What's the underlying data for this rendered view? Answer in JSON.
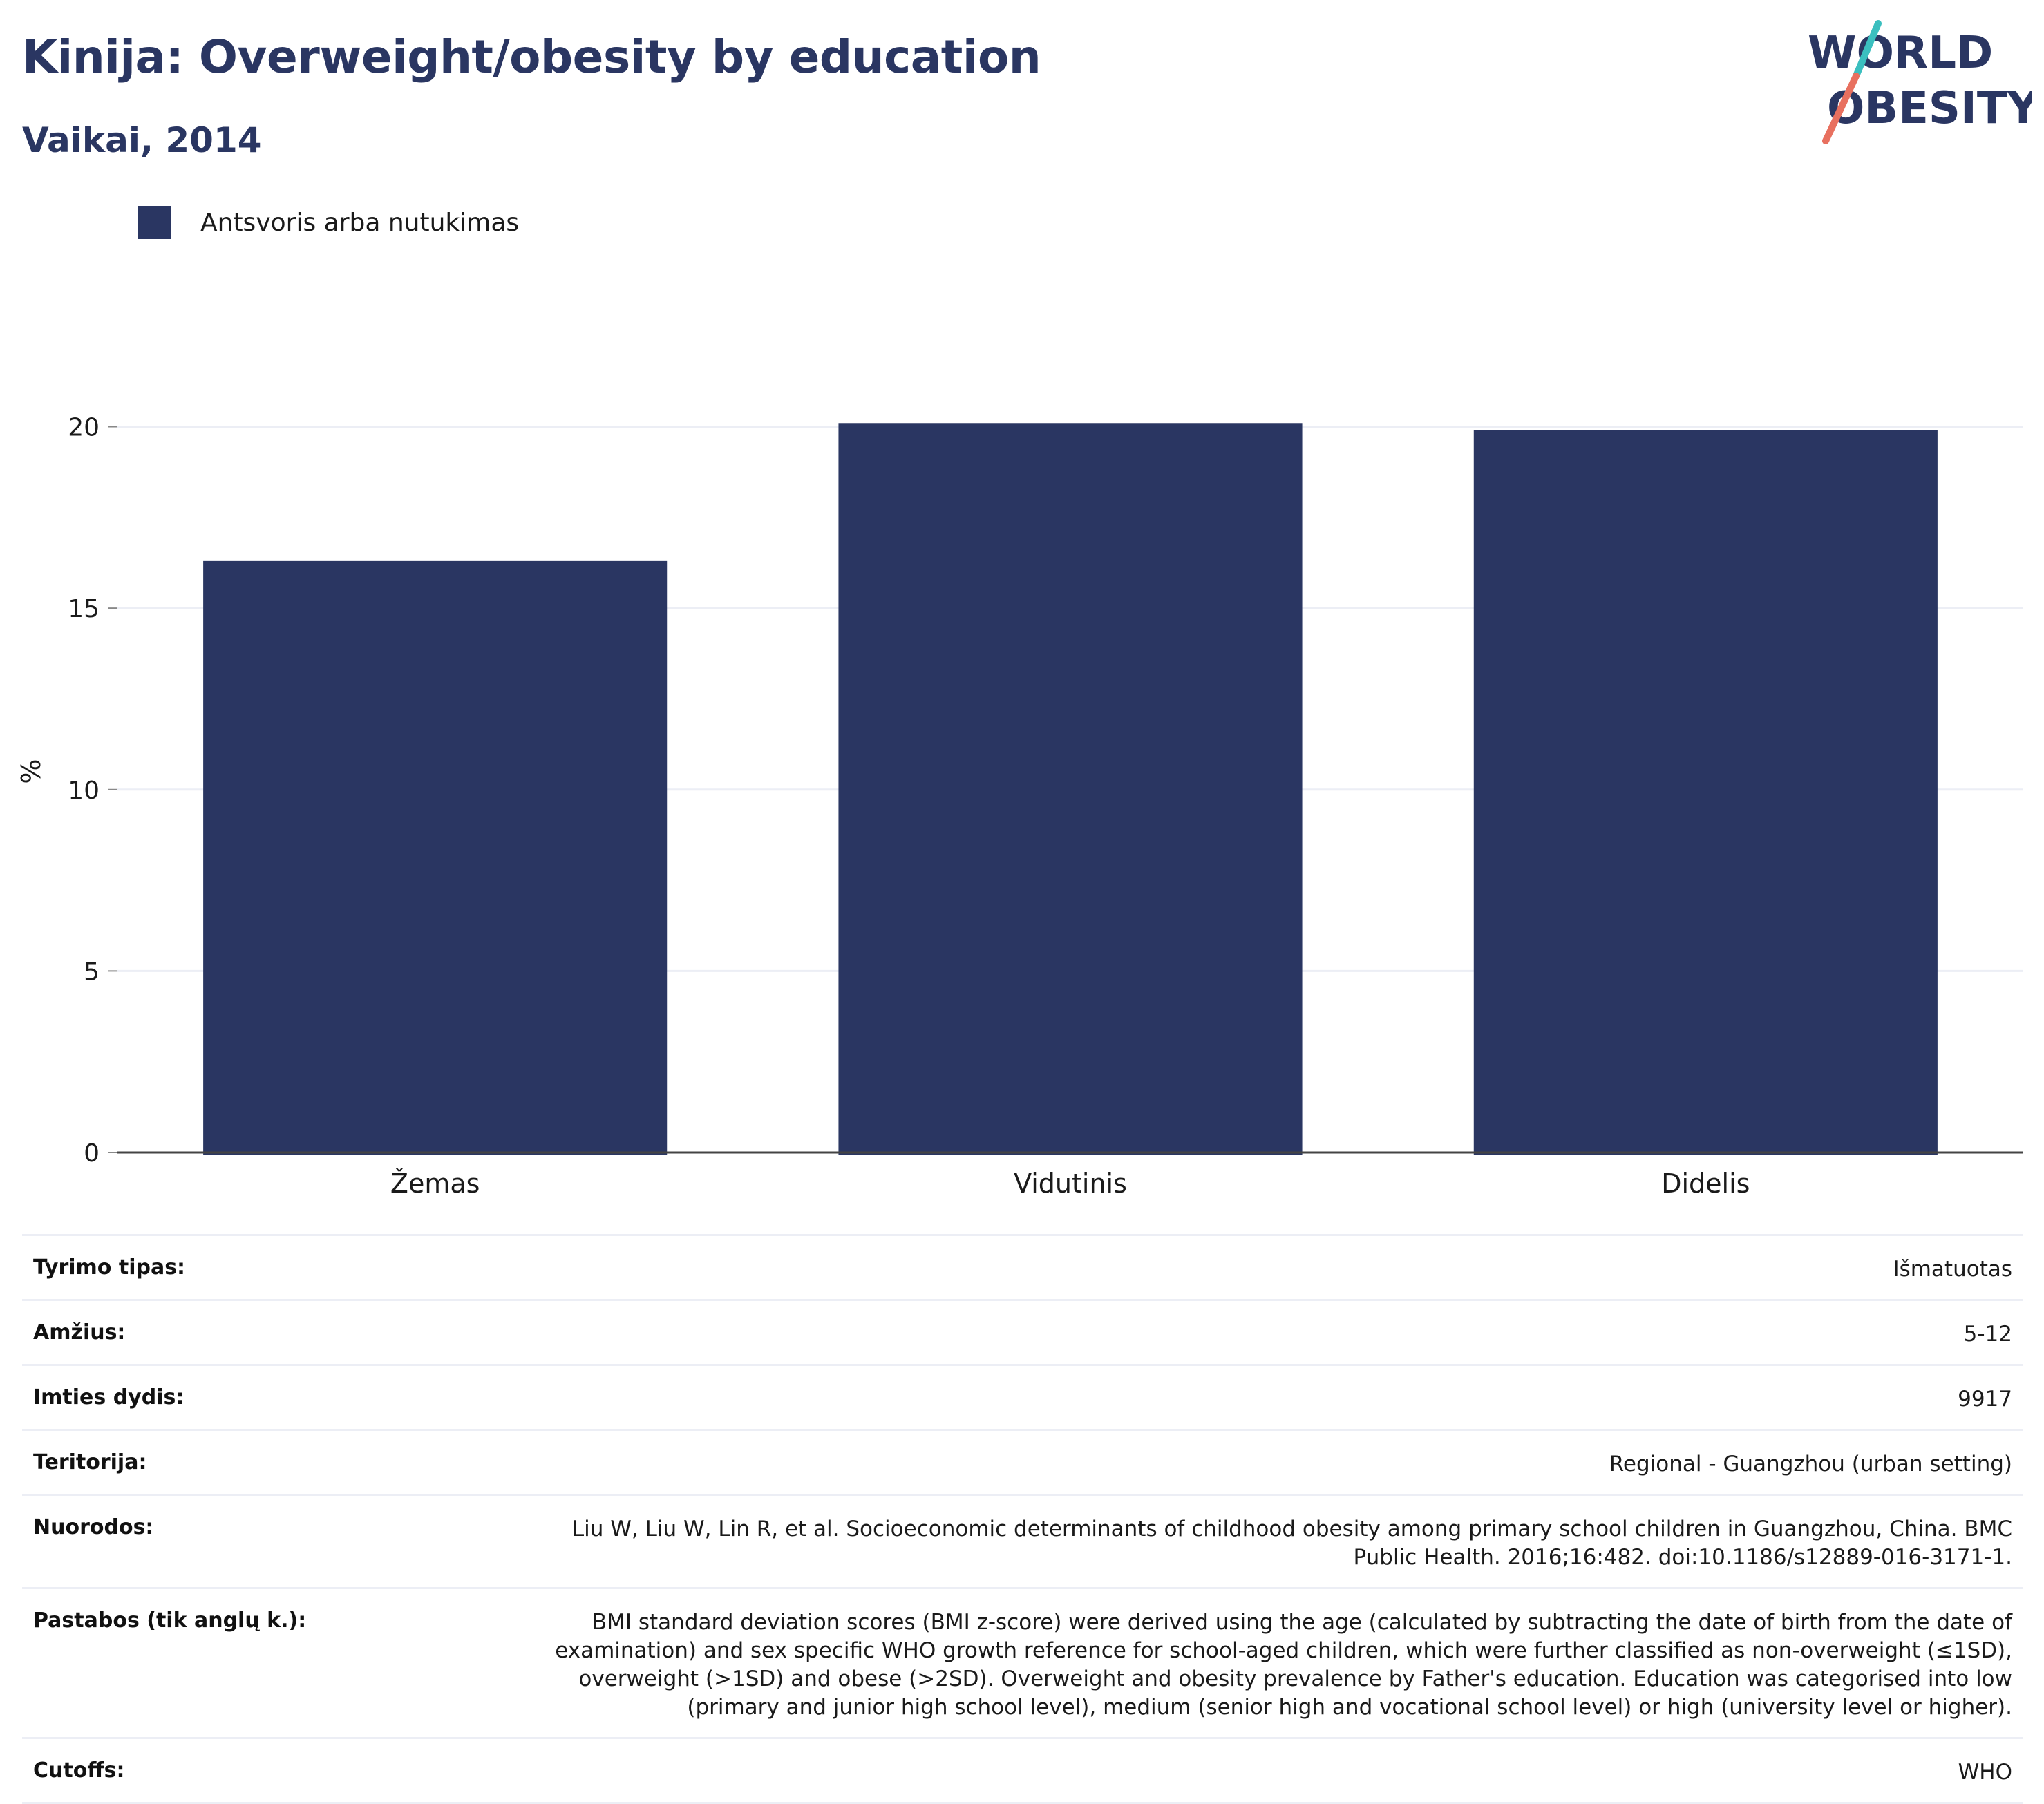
{
  "header": {
    "title": "Kinija: Overweight/obesity by education",
    "subtitle": "Vaikai, 2014"
  },
  "logo": {
    "line1": "WORLD",
    "line2": "OBESITY",
    "colors": {
      "text": "#2a3662",
      "slash_top": "#3bbfbf",
      "slash_bottom": "#e8705f"
    }
  },
  "legend": {
    "items": [
      {
        "label": "Antsvoris arba nutukimas",
        "color": "#2a3662"
      }
    ]
  },
  "chart_data": {
    "type": "bar",
    "categories": [
      "Žemas",
      "Vidutinis",
      "Didelis"
    ],
    "series": [
      {
        "name": "Antsvoris arba nutukimas",
        "values": [
          16.3,
          20.1,
          19.9
        ],
        "color": "#2a3662"
      }
    ],
    "ylabel": "%",
    "xlabel": "",
    "ylim": [
      0,
      21
    ],
    "yticks": [
      0,
      5,
      10,
      15,
      20
    ],
    "grid": true,
    "legend_position": "top-left"
  },
  "info": {
    "rows": [
      {
        "label": "Tyrimo tipas:",
        "value": "Išmatuotas"
      },
      {
        "label": "Amžius:",
        "value": "5-12"
      },
      {
        "label": "Imties dydis:",
        "value": "9917"
      },
      {
        "label": "Teritorija:",
        "value": "Regional - Guangzhou (urban setting)"
      },
      {
        "label": "Nuorodos:",
        "value": "Liu W, Liu W, Lin R, et al. Socioeconomic determinants of childhood obesity among primary school children in Guangzhou, China. BMC Public Health. 2016;16:482. doi:10.1186/s12889-016-3171-1."
      },
      {
        "label": "Pastabos (tik anglų k.):",
        "value": "BMI standard deviation scores (BMI z-score) were derived using the age (calculated by subtracting the date of birth from the date of examination) and sex specific WHO growth reference for school-aged children, which were further classified as non-overweight (≤1SD), overweight (>1SD) and obese (>2SD). Overweight and obesity prevalence by Father's education. Education was categorised into low (primary and junior high school level), medium (senior high and vocational school level) or high (university level or higher)."
      },
      {
        "label": "Cutoffs:",
        "value": "WHO"
      }
    ]
  }
}
